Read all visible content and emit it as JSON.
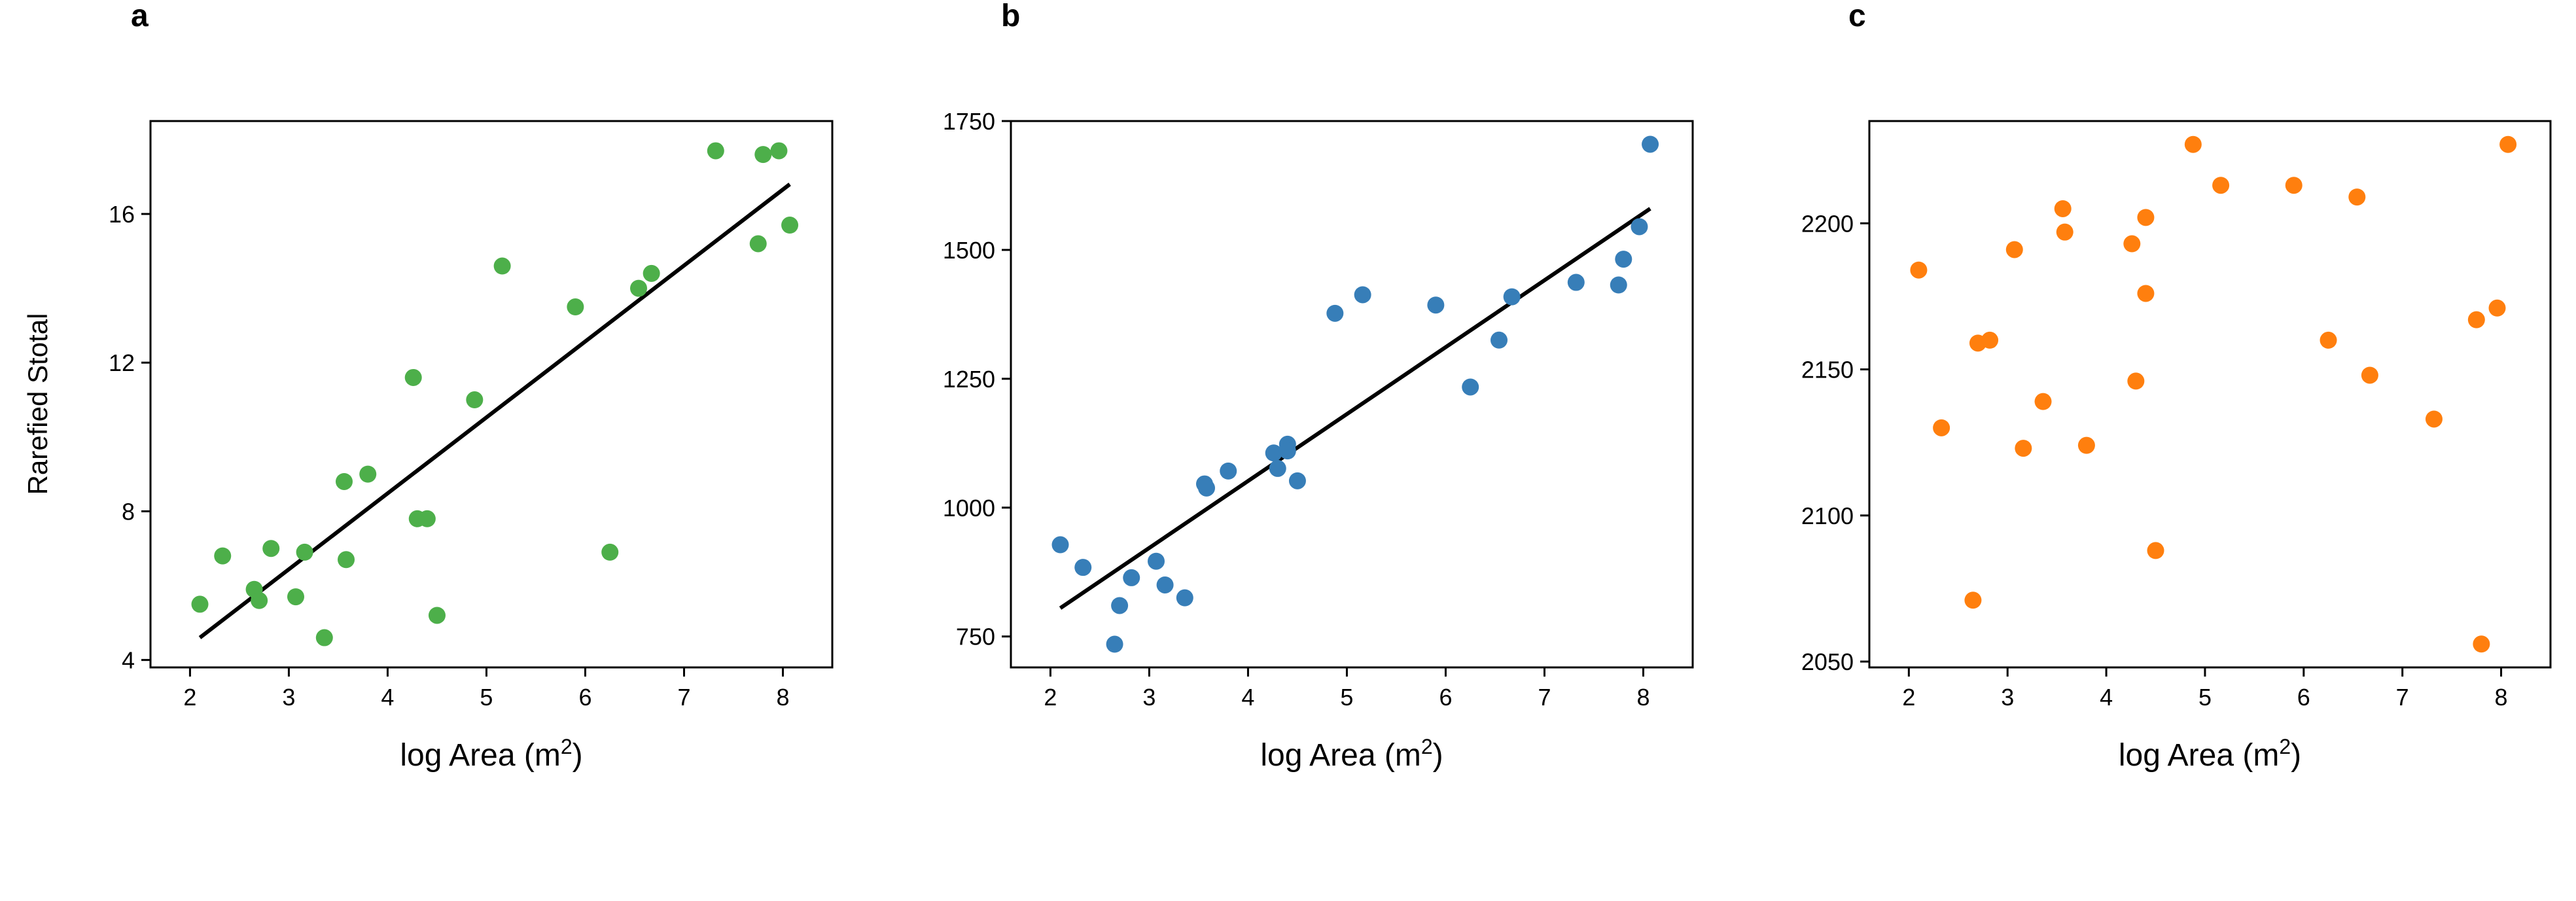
{
  "chart_data": [
    {
      "panel": "a",
      "type": "scatter",
      "xlabel": "log Area (m2)",
      "ylabel": "Rarefied Stotal",
      "xlim": [
        1.6,
        8.5
      ],
      "ylim": [
        3.8,
        18.5
      ],
      "xticks": [
        2,
        3,
        4,
        5,
        6,
        7,
        8
      ],
      "yticks": [
        4,
        8,
        12,
        16
      ],
      "grid": false,
      "color": "#4daf4a",
      "x": [
        2.1,
        2.33,
        2.65,
        2.7,
        2.82,
        3.07,
        3.16,
        3.36,
        3.56,
        3.58,
        3.8,
        4.26,
        4.3,
        4.4,
        4.5,
        4.88,
        5.16,
        5.9,
        6.25,
        6.54,
        6.67,
        7.32,
        7.75,
        7.8,
        7.96,
        8.07
      ],
      "y": [
        5.5,
        6.8,
        5.9,
        5.6,
        7.0,
        5.7,
        6.9,
        4.6,
        8.8,
        6.7,
        9.0,
        11.6,
        7.8,
        7.8,
        5.2,
        11.0,
        14.6,
        13.5,
        6.9,
        14.0,
        14.4,
        17.7,
        15.2,
        17.6,
        17.7,
        15.7
      ],
      "trend": {
        "x": [
          2.1,
          8.07
        ],
        "y": [
          4.6,
          16.8
        ]
      }
    },
    {
      "panel": "b",
      "type": "scatter",
      "xlabel": "log Area (m2)",
      "ylabel": "",
      "xlim": [
        1.6,
        8.5
      ],
      "ylim": [
        690,
        1750
      ],
      "xticks": [
        2,
        3,
        4,
        5,
        6,
        7,
        8
      ],
      "yticks": [
        750,
        1000,
        1250,
        1500,
        1750
      ],
      "grid": false,
      "color": "#377eb8",
      "x": [
        2.1,
        2.33,
        2.65,
        2.7,
        2.82,
        3.07,
        3.16,
        3.36,
        3.56,
        3.58,
        3.8,
        4.26,
        4.3,
        4.4,
        4.4,
        4.5,
        4.88,
        5.16,
        5.9,
        6.25,
        6.54,
        6.67,
        7.32,
        7.75,
        7.8,
        7.96,
        8.07
      ],
      "y": [
        928,
        884,
        735,
        810,
        864,
        896,
        850,
        825,
        1046,
        1038,
        1071,
        1106,
        1076,
        1123,
        1110,
        1052,
        1377,
        1413,
        1393,
        1234,
        1325,
        1409,
        1437,
        1432,
        1482,
        1545,
        1705
      ],
      "trend": {
        "x": [
          2.1,
          8.07
        ],
        "y": [
          805,
          1580
        ]
      }
    },
    {
      "panel": "c",
      "type": "scatter",
      "xlabel": "log Area (m2)",
      "ylabel": "",
      "xlim": [
        1.6,
        8.5
      ],
      "ylim": [
        2048,
        2235
      ],
      "xticks": [
        2,
        3,
        4,
        5,
        6,
        7,
        8
      ],
      "yticks": [
        2050,
        2100,
        2150,
        2200
      ],
      "grid": false,
      "color": "#ff7f0e",
      "x": [
        2.1,
        2.33,
        2.65,
        2.7,
        2.82,
        3.07,
        3.16,
        3.36,
        3.56,
        3.58,
        3.8,
        4.26,
        4.3,
        4.4,
        4.4,
        4.5,
        4.88,
        5.16,
        5.9,
        6.25,
        6.54,
        6.67,
        7.32,
        7.75,
        7.8,
        7.96,
        8.07
      ],
      "y": [
        2184,
        2130,
        2071,
        2159,
        2160,
        2191,
        2123,
        2139,
        2205,
        2197,
        2124,
        2193,
        2146,
        2202,
        2176,
        2088,
        2227,
        2213,
        2213,
        2160,
        2209,
        2148,
        2133,
        2167,
        2056,
        2171,
        2227
      ],
      "trend": null
    }
  ]
}
